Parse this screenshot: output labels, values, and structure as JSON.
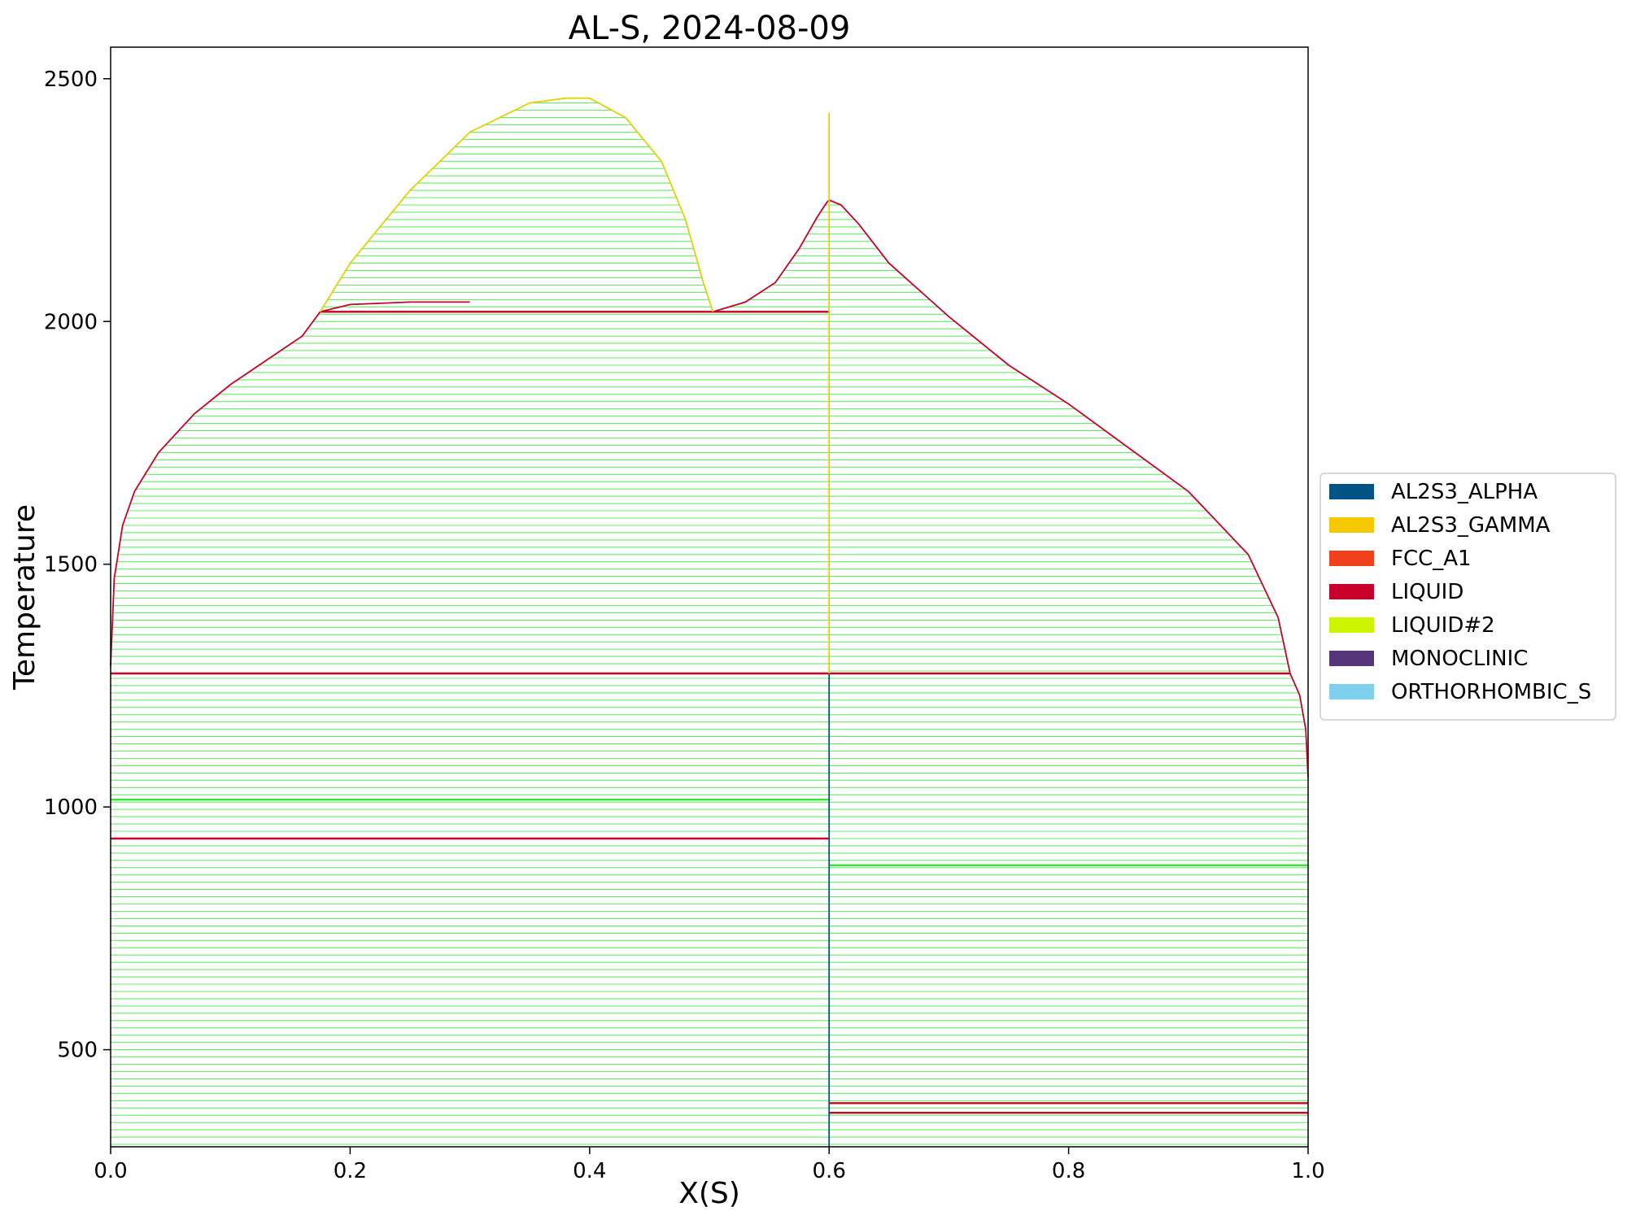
{
  "chart_data": {
    "type": "phase-diagram",
    "title": "AL-S, 2024-08-09",
    "xlabel": "X(S)",
    "ylabel": "Temperature",
    "xlim": [
      0.0,
      1.0
    ],
    "ylim": [
      300,
      2565
    ],
    "xticks": [
      "0.0",
      "0.2",
      "0.4",
      "0.6",
      "0.8",
      "1.0"
    ],
    "yticks": [
      "500",
      "1000",
      "1500",
      "2000",
      "2500"
    ],
    "legend_position": "right",
    "legend": [
      {
        "name": "AL2S3_ALPHA",
        "color": "#005485"
      },
      {
        "name": "AL2S3_GAMMA",
        "color": "#f6c800"
      },
      {
        "name": "FCC_A1",
        "color": "#f0401c"
      },
      {
        "name": "LIQUID",
        "color": "#c8002a"
      },
      {
        "name": "LIQUID#2",
        "color": "#cdf500"
      },
      {
        "name": "MONOCLINIC",
        "color": "#55367b"
      },
      {
        "name": "ORTHORHOMBIC_S",
        "color": "#7fd0ec"
      }
    ],
    "tie_line_color": "#33e633",
    "phase_boundaries": [
      {
        "phase": "LIQUID",
        "color": "#c8002a",
        "points": [
          [
            0.0,
            1290
          ],
          [
            0.003,
            1470
          ],
          [
            0.01,
            1580
          ],
          [
            0.02,
            1650
          ],
          [
            0.04,
            1730
          ],
          [
            0.07,
            1810
          ],
          [
            0.1,
            1870
          ],
          [
            0.13,
            1920
          ],
          [
            0.16,
            1970
          ],
          [
            0.175,
            2020
          ],
          [
            0.2,
            2035
          ],
          [
            0.25,
            2040
          ],
          [
            0.3,
            2040
          ]
        ]
      },
      {
        "phase": "LIQUID",
        "color": "#c8002a",
        "points": [
          [
            0.503,
            2020
          ],
          [
            0.53,
            2040
          ],
          [
            0.555,
            2080
          ],
          [
            0.575,
            2150
          ],
          [
            0.59,
            2215
          ],
          [
            0.598,
            2245
          ],
          [
            0.6,
            2250
          ],
          [
            0.61,
            2240
          ],
          [
            0.625,
            2200
          ],
          [
            0.65,
            2120
          ],
          [
            0.7,
            2010
          ],
          [
            0.75,
            1910
          ],
          [
            0.8,
            1830
          ],
          [
            0.85,
            1740
          ],
          [
            0.9,
            1650
          ],
          [
            0.95,
            1520
          ],
          [
            0.975,
            1390
          ],
          [
            0.985,
            1275
          ],
          [
            0.993,
            1230
          ],
          [
            0.998,
            1160
          ],
          [
            1.0,
            1060
          ]
        ]
      },
      {
        "phase": "LIQUID#2",
        "color": "#e0d200",
        "points": [
          [
            0.175,
            2020
          ],
          [
            0.2,
            2120
          ],
          [
            0.25,
            2270
          ],
          [
            0.3,
            2390
          ],
          [
            0.35,
            2450
          ],
          [
            0.38,
            2460
          ],
          [
            0.4,
            2460
          ],
          [
            0.43,
            2420
          ],
          [
            0.46,
            2330
          ],
          [
            0.48,
            2210
          ],
          [
            0.495,
            2080
          ],
          [
            0.503,
            2020
          ]
        ]
      },
      {
        "phase": "AL2S3_GAMMA",
        "color": "#f6c800",
        "points": [
          [
            0.6,
            1275
          ],
          [
            0.6,
            2430
          ]
        ]
      },
      {
        "phase": "AL2S3_ALPHA",
        "color": "#005485",
        "points": [
          [
            0.6,
            300
          ],
          [
            0.6,
            1275
          ]
        ]
      }
    ],
    "invariant_lines": [
      {
        "x1": 0.175,
        "x2": 0.6,
        "y": 2020,
        "color": "#c8002a"
      },
      {
        "x1": 0.0,
        "x2": 0.985,
        "y": 1275,
        "color": "#c8002a"
      },
      {
        "x1": 0.0,
        "x2": 0.6,
        "y": 1015,
        "color": "#33e633"
      },
      {
        "x1": 0.0,
        "x2": 0.6,
        "y": 935,
        "color": "#c8002a"
      },
      {
        "x1": 0.6,
        "x2": 1.0,
        "y": 880,
        "color": "#33e633"
      },
      {
        "x1": 0.6,
        "x2": 1.0,
        "y": 390,
        "color": "#c8002a"
      },
      {
        "x1": 0.6,
        "x2": 1.0,
        "y": 370,
        "color": "#c8002a"
      }
    ]
  }
}
